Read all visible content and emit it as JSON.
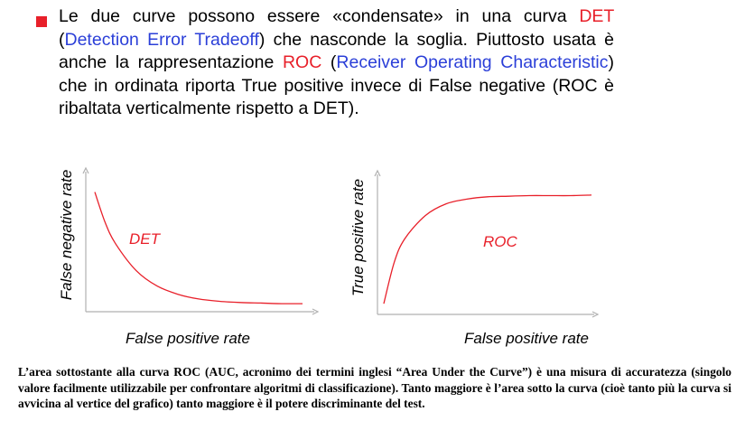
{
  "bullet": {
    "t1": "Le due curve possono essere «condensate» in una curva ",
    "det": "DET",
    "t2": "(",
    "det_full": "Detection Error Tradeoff",
    "t3": ") che nasconde la soglia. Piuttosto usata è anche la rappresentazione ",
    "roc": "ROC",
    "t4": " (",
    "roc_full": "Receiver Operating Characteristic",
    "t5": ") che in ordinata riporta True positive invece di False negative (ROC è ribaltata verticalmente rispetto a DET)."
  },
  "colors": {
    "red": "#e8202a",
    "blue": "#2b3fd8",
    "axis": "#b0b0b0"
  },
  "chart_data": [
    {
      "type": "line",
      "curve_label": "DET",
      "xlabel": "False positive rate",
      "ylabel": "False negative rate",
      "x": [
        0.0,
        0.05,
        0.1,
        0.2,
        0.3,
        0.4,
        0.5,
        0.6,
        0.7,
        0.8,
        0.9,
        1.0
      ],
      "y": [
        0.98,
        0.72,
        0.54,
        0.31,
        0.18,
        0.11,
        0.07,
        0.05,
        0.04,
        0.035,
        0.03,
        0.03
      ],
      "xlim": [
        0,
        1
      ],
      "ylim": [
        0,
        1
      ],
      "grid": false
    },
    {
      "type": "line",
      "curve_label": "ROC",
      "xlabel": "False positive rate",
      "ylabel": "True positive rate",
      "x": [
        0.0,
        0.05,
        0.1,
        0.2,
        0.3,
        0.4,
        0.5,
        0.6,
        0.7,
        0.8,
        0.9,
        1.0
      ],
      "y": [
        0.03,
        0.38,
        0.58,
        0.78,
        0.88,
        0.92,
        0.94,
        0.945,
        0.95,
        0.95,
        0.95,
        0.955
      ],
      "xlim": [
        0,
        1
      ],
      "ylim": [
        0,
        1
      ],
      "grid": false
    }
  ],
  "caption": "L’area sottostante alla curva ROC (AUC, acronimo dei termini inglesi “Area Under the Curve”) è una misura di accuratezza (singolo valore facilmente utilizzabile per confrontare algoritmi di classificazione). Tanto maggiore è l’area sotto la curva (cioè tanto più la curva si avvicina al vertice del grafico) tanto maggiore è il potere discriminante del test."
}
